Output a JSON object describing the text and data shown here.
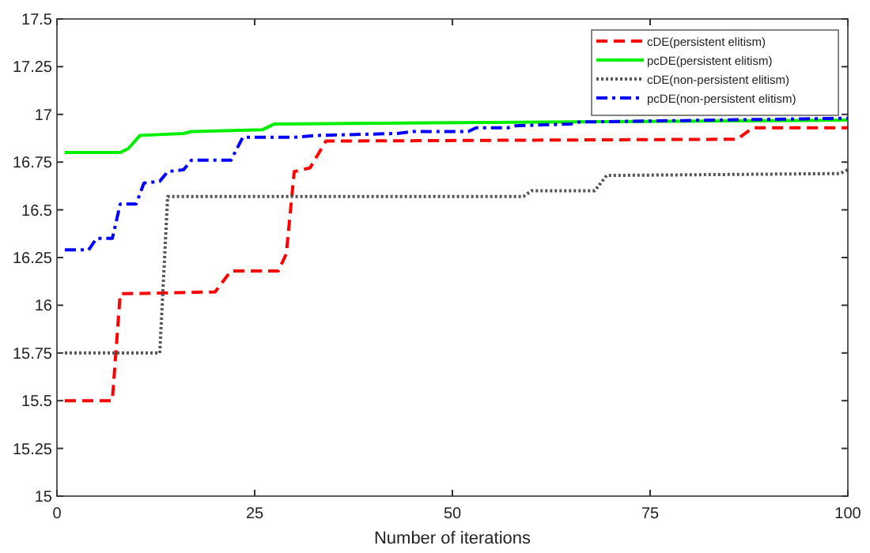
{
  "chart_data": {
    "type": "line",
    "xlabel": "Number of iterations",
    "xlim": [
      0,
      100
    ],
    "xticks": [
      0,
      25,
      50,
      75,
      100
    ],
    "ylim": [
      15,
      17.5
    ],
    "yticks": [
      15,
      15.25,
      15.5,
      15.75,
      16,
      16.25,
      16.5,
      16.75,
      17,
      17.25,
      17.5
    ],
    "grid": false,
    "legend": "top right",
    "series": [
      {
        "name": "cDE(persistent elitism)",
        "color": "#ff0000",
        "line_style": "dashed",
        "x": [
          1,
          7,
          8,
          20,
          22,
          28,
          29,
          30,
          32,
          34,
          86,
          88,
          100
        ],
        "values": [
          15.5,
          15.5,
          16.06,
          16.07,
          16.18,
          16.18,
          16.27,
          16.7,
          16.72,
          16.86,
          16.87,
          16.93,
          16.93
        ]
      },
      {
        "name": "pcDE(persistent elitism)",
        "color": "#00ee00",
        "line_style": "solid",
        "x": [
          1,
          8,
          9,
          10.5,
          16,
          17,
          26,
          27.5,
          100
        ],
        "values": [
          16.8,
          16.8,
          16.82,
          16.89,
          16.9,
          16.91,
          16.92,
          16.95,
          16.97
        ]
      },
      {
        "name": "cDE(non-persistent elitism)",
        "color": "#555555",
        "line_style": "dotted",
        "x": [
          1,
          13,
          14,
          59,
          60,
          68,
          69.5,
          99,
          100
        ],
        "values": [
          15.75,
          15.75,
          16.57,
          16.57,
          16.6,
          16.6,
          16.68,
          16.69,
          16.71
        ]
      },
      {
        "name": "pcDE(non-persistent elitism)",
        "color": "#0000ff",
        "line_style": "dashdot",
        "x": [
          1,
          4,
          5,
          7,
          8,
          10,
          11,
          13,
          14,
          16,
          17,
          22,
          23.5,
          30,
          33,
          43,
          45,
          52,
          53,
          57,
          58,
          65,
          66,
          100
        ],
        "values": [
          16.29,
          16.29,
          16.35,
          16.35,
          16.53,
          16.53,
          16.64,
          16.65,
          16.7,
          16.71,
          16.76,
          16.76,
          16.88,
          16.88,
          16.89,
          16.9,
          16.91,
          16.91,
          16.93,
          16.93,
          16.94,
          16.95,
          16.96,
          16.98
        ]
      }
    ]
  }
}
